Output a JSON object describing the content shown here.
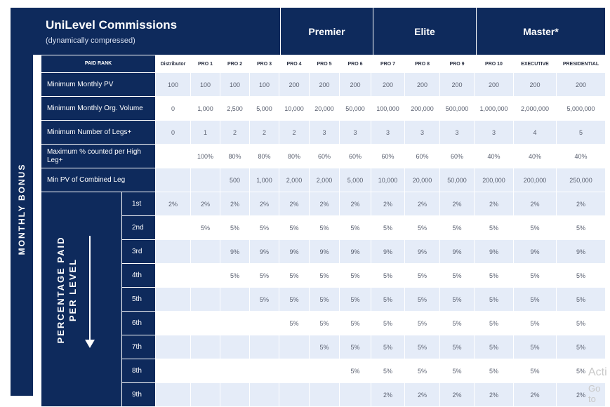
{
  "side_label": "MONTHLY BONUS",
  "title": "UniLevel Commissions",
  "subtitle": "(dynamically compressed)",
  "tiers": [
    "Premier",
    "Elite",
    "Master*"
  ],
  "paid_rank_label": "PAID RANK",
  "ranks": [
    "Distributor",
    "PRO 1",
    "PRO 2",
    "PRO 3",
    "PRO 4",
    "PRO 5",
    "PRO 6",
    "PRO 7",
    "PRO 8",
    "PRO 9",
    "PRO 10",
    "EXECUTIVE",
    "PRESIDENTIAL"
  ],
  "requirements": [
    {
      "label": "Minimum Monthly PV",
      "values": [
        "100",
        "100",
        "100",
        "100",
        "200",
        "200",
        "200",
        "200",
        "200",
        "200",
        "200",
        "200",
        "200"
      ]
    },
    {
      "label": "Minimum Monthly Org. Volume",
      "values": [
        "0",
        "1,000",
        "2,500",
        "5,000",
        "10,000",
        "20,000",
        "50,000",
        "100,000",
        "200,000",
        "500,000",
        "1,000,000",
        "2,000,000",
        "5,000,000"
      ]
    },
    {
      "label": "Minimum Number of Legs+",
      "values": [
        "0",
        "1",
        "2",
        "2",
        "2",
        "3",
        "3",
        "3",
        "3",
        "3",
        "3",
        "4",
        "5"
      ]
    },
    {
      "label": "Maximum % counted per High Leg+",
      "values": [
        "",
        "100%",
        "80%",
        "80%",
        "80%",
        "60%",
        "60%",
        "60%",
        "60%",
        "60%",
        "40%",
        "40%",
        "40%"
      ]
    },
    {
      "label": "Min PV of Combined Leg",
      "values": [
        "",
        "",
        "500",
        "1,000",
        "2,000",
        "2,000",
        "5,000",
        "10,000",
        "20,000",
        "50,000",
        "200,000",
        "200,000",
        "250,000"
      ]
    }
  ],
  "percentage_label_line1": "PERCENTAGE PAID",
  "percentage_label_line2": "PER LEVEL",
  "levels": [
    {
      "label": "1st",
      "values": [
        "2%",
        "2%",
        "2%",
        "2%",
        "2%",
        "2%",
        "2%",
        "2%",
        "2%",
        "2%",
        "2%",
        "2%",
        "2%"
      ]
    },
    {
      "label": "2nd",
      "values": [
        "",
        "5%",
        "5%",
        "5%",
        "5%",
        "5%",
        "5%",
        "5%",
        "5%",
        "5%",
        "5%",
        "5%",
        "5%"
      ]
    },
    {
      "label": "3rd",
      "values": [
        "",
        "",
        "9%",
        "9%",
        "9%",
        "9%",
        "9%",
        "9%",
        "9%",
        "9%",
        "9%",
        "9%",
        "9%"
      ]
    },
    {
      "label": "4th",
      "values": [
        "",
        "",
        "5%",
        "5%",
        "5%",
        "5%",
        "5%",
        "5%",
        "5%",
        "5%",
        "5%",
        "5%",
        "5%"
      ]
    },
    {
      "label": "5th",
      "values": [
        "",
        "",
        "",
        "5%",
        "5%",
        "5%",
        "5%",
        "5%",
        "5%",
        "5%",
        "5%",
        "5%",
        "5%"
      ]
    },
    {
      "label": "6th",
      "values": [
        "",
        "",
        "",
        "",
        "5%",
        "5%",
        "5%",
        "5%",
        "5%",
        "5%",
        "5%",
        "5%",
        "5%"
      ]
    },
    {
      "label": "7th",
      "values": [
        "",
        "",
        "",
        "",
        "",
        "5%",
        "5%",
        "5%",
        "5%",
        "5%",
        "5%",
        "5%",
        "5%"
      ]
    },
    {
      "label": "8th",
      "values": [
        "",
        "",
        "",
        "",
        "",
        "",
        "5%",
        "5%",
        "5%",
        "5%",
        "5%",
        "5%",
        "5%"
      ]
    },
    {
      "label": "9th",
      "values": [
        "",
        "",
        "",
        "",
        "",
        "",
        "",
        "2%",
        "2%",
        "2%",
        "2%",
        "2%",
        "2%"
      ]
    }
  ],
  "watermark_line1": "Acti",
  "watermark_line2": "Go to"
}
